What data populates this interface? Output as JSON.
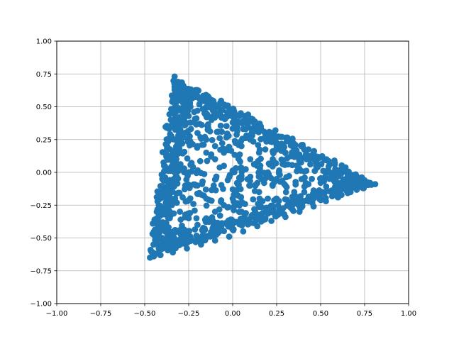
{
  "chart_data": {
    "type": "scatter",
    "title": "",
    "xlabel": "",
    "ylabel": "",
    "xlim": [
      -1.0,
      1.0
    ],
    "ylim": [
      -1.0,
      1.0
    ],
    "grid": true,
    "x_ticks": [
      "−1.00",
      "−0.75",
      "−0.50",
      "−0.25",
      "0.00",
      "0.25",
      "0.50",
      "0.75",
      "1.00"
    ],
    "y_ticks": [
      "−1.00",
      "−0.75",
      "−0.50",
      "−0.25",
      "0.00",
      "0.25",
      "0.50",
      "0.75",
      "1.00"
    ],
    "series": [
      {
        "color": "#1f77b4",
        "shape_vertices": [
          [
            -0.33,
            0.73
          ],
          [
            0.81,
            -0.09
          ],
          [
            -0.47,
            -0.65
          ]
        ],
        "point_count_estimate": 1800,
        "points": [
          [
            -0.33,
            0.73
          ],
          [
            -0.31,
            0.69
          ],
          [
            -0.28,
            0.66
          ],
          [
            -0.25,
            0.62
          ],
          [
            -0.2,
            0.58
          ],
          [
            -0.14,
            0.55
          ],
          [
            -0.08,
            0.5
          ],
          [
            -0.02,
            0.47
          ],
          [
            0.04,
            0.43
          ],
          [
            0.1,
            0.39
          ],
          [
            0.16,
            0.35
          ],
          [
            0.22,
            0.3
          ],
          [
            0.28,
            0.27
          ],
          [
            0.34,
            0.23
          ],
          [
            0.4,
            0.19
          ],
          [
            0.46,
            0.15
          ],
          [
            0.52,
            0.1
          ],
          [
            0.58,
            0.06
          ],
          [
            0.63,
            0.02
          ],
          [
            0.69,
            -0.02
          ],
          [
            0.75,
            -0.06
          ],
          [
            0.81,
            -0.09
          ],
          [
            0.74,
            -0.12
          ],
          [
            0.67,
            -0.15
          ],
          [
            0.6,
            -0.19
          ],
          [
            0.53,
            -0.22
          ],
          [
            0.46,
            -0.26
          ],
          [
            0.38,
            -0.3
          ],
          [
            0.3,
            -0.34
          ],
          [
            0.22,
            -0.37
          ],
          [
            0.14,
            -0.41
          ],
          [
            0.06,
            -0.45
          ],
          [
            -0.02,
            -0.49
          ],
          [
            -0.1,
            -0.52
          ],
          [
            -0.18,
            -0.55
          ],
          [
            -0.26,
            -0.58
          ],
          [
            -0.34,
            -0.61
          ],
          [
            -0.41,
            -0.63
          ],
          [
            -0.47,
            -0.65
          ],
          [
            -0.45,
            -0.55
          ],
          [
            -0.44,
            -0.45
          ],
          [
            -0.43,
            -0.35
          ],
          [
            -0.42,
            -0.25
          ],
          [
            -0.41,
            -0.15
          ],
          [
            -0.4,
            -0.05
          ],
          [
            -0.39,
            0.05
          ],
          [
            -0.38,
            0.15
          ],
          [
            -0.37,
            0.25
          ],
          [
            -0.36,
            0.35
          ],
          [
            -0.35,
            0.45
          ],
          [
            -0.34,
            0.55
          ],
          [
            -0.33,
            0.63
          ],
          [
            -0.3,
            0.64
          ],
          [
            -0.27,
            0.6
          ],
          [
            -0.32,
            0.5
          ],
          [
            -0.29,
            0.55
          ],
          [
            -0.24,
            0.5
          ],
          [
            -0.2,
            0.47
          ],
          [
            -0.3,
            0.4
          ],
          [
            -0.27,
            0.36
          ],
          [
            -0.22,
            0.38
          ],
          [
            -0.16,
            0.45
          ],
          [
            -0.12,
            0.4
          ],
          [
            -0.05,
            0.42
          ],
          [
            0.0,
            0.38
          ],
          [
            0.06,
            0.33
          ],
          [
            0.12,
            0.31
          ],
          [
            0.18,
            0.26
          ],
          [
            0.25,
            0.2
          ],
          [
            0.3,
            0.15
          ],
          [
            0.36,
            0.12
          ],
          [
            0.42,
            0.1
          ],
          [
            0.48,
            0.05
          ],
          [
            0.55,
            0.0
          ],
          [
            0.6,
            -0.03
          ],
          [
            0.66,
            -0.06
          ],
          [
            0.71,
            -0.08
          ],
          [
            0.77,
            -0.08
          ],
          [
            0.72,
            -0.1
          ],
          [
            0.65,
            -0.1
          ],
          [
            0.58,
            -0.12
          ],
          [
            0.52,
            -0.16
          ],
          [
            0.46,
            -0.2
          ],
          [
            0.4,
            -0.22
          ],
          [
            0.34,
            -0.25
          ],
          [
            0.28,
            -0.28
          ],
          [
            0.2,
            -0.3
          ],
          [
            0.12,
            -0.33
          ],
          [
            0.05,
            -0.36
          ],
          [
            -0.03,
            -0.4
          ],
          [
            -0.1,
            -0.44
          ],
          [
            -0.17,
            -0.48
          ],
          [
            -0.24,
            -0.5
          ],
          [
            -0.3,
            -0.52
          ],
          [
            -0.37,
            -0.55
          ],
          [
            -0.42,
            -0.58
          ],
          [
            -0.44,
            -0.62
          ],
          [
            -0.4,
            -0.5
          ],
          [
            -0.38,
            -0.4
          ],
          [
            -0.36,
            -0.3
          ],
          [
            -0.35,
            -0.2
          ],
          [
            -0.34,
            -0.1
          ],
          [
            -0.33,
            0.0
          ],
          [
            -0.32,
            0.1
          ],
          [
            -0.31,
            0.2
          ],
          [
            -0.3,
            0.3
          ],
          [
            -0.25,
            0.25
          ],
          [
            -0.2,
            0.2
          ],
          [
            -0.15,
            0.15
          ],
          [
            -0.1,
            0.1
          ],
          [
            -0.05,
            0.05
          ],
          [
            0.0,
            0.0
          ],
          [
            0.05,
            -0.05
          ],
          [
            0.1,
            -0.1
          ],
          [
            0.15,
            -0.15
          ],
          [
            0.2,
            -0.2
          ],
          [
            -0.25,
            0.0
          ],
          [
            -0.2,
            -0.1
          ],
          [
            -0.15,
            -0.2
          ],
          [
            -0.1,
            -0.3
          ],
          [
            -0.05,
            -0.25
          ],
          [
            0.0,
            -0.2
          ],
          [
            0.1,
            0.1
          ],
          [
            0.15,
            0.05
          ],
          [
            0.2,
            0.0
          ],
          [
            0.25,
            -0.05
          ],
          [
            0.3,
            -0.1
          ],
          [
            0.35,
            -0.15
          ],
          [
            -0.2,
            0.3
          ],
          [
            -0.15,
            0.25
          ],
          [
            -0.1,
            0.2
          ],
          [
            -0.05,
            0.15
          ],
          [
            0.05,
            0.2
          ],
          [
            0.1,
            0.25
          ],
          [
            0.15,
            0.15
          ],
          [
            -0.3,
            -0.3
          ],
          [
            -0.25,
            -0.35
          ],
          [
            -0.2,
            -0.4
          ],
          [
            -0.15,
            -0.35
          ],
          [
            -0.1,
            -0.4
          ],
          [
            0.05,
            -0.3
          ],
          [
            0.15,
            -0.25
          ],
          [
            0.25,
            -0.2
          ],
          [
            0.45,
            -0.05
          ],
          [
            0.5,
            -0.08
          ],
          [
            0.55,
            -0.05
          ],
          [
            0.6,
            -0.08
          ],
          [
            0.62,
            -0.12
          ],
          [
            0.68,
            -0.11
          ],
          [
            0.75,
            -0.1
          ],
          [
            0.79,
            -0.09
          ],
          [
            0.7,
            -0.04
          ]
        ]
      }
    ]
  }
}
